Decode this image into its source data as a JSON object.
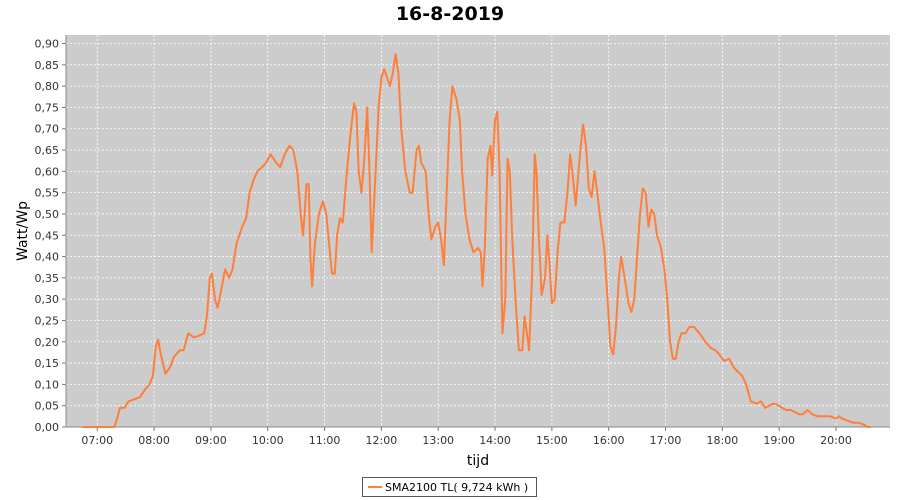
{
  "colors": {
    "plot_background": "#cccccc",
    "gridline": "#ffffff",
    "series_line": "#ff7f3a"
  },
  "chart_data": {
    "type": "line",
    "title": "16-8-2019",
    "xlabel": "tijd",
    "ylabel": "Watt/Wp",
    "x_unit": "hours (time of day)",
    "xlim": [
      6.45,
      20.95
    ],
    "ylim": [
      0,
      0.92
    ],
    "grid": true,
    "legend_position": "bottom-center",
    "x_ticks": [
      {
        "value": 7,
        "label": "07:00"
      },
      {
        "value": 8,
        "label": "08:00"
      },
      {
        "value": 9,
        "label": "09:00"
      },
      {
        "value": 10,
        "label": "10:00"
      },
      {
        "value": 11,
        "label": "11:00"
      },
      {
        "value": 12,
        "label": "12:00"
      },
      {
        "value": 13,
        "label": "13:00"
      },
      {
        "value": 14,
        "label": "14:00"
      },
      {
        "value": 15,
        "label": "15:00"
      },
      {
        "value": 16,
        "label": "16:00"
      },
      {
        "value": 17,
        "label": "17:00"
      },
      {
        "value": 18,
        "label": "18:00"
      },
      {
        "value": 19,
        "label": "19:00"
      },
      {
        "value": 20,
        "label": "20:00"
      }
    ],
    "y_ticks": [
      {
        "value": 0.0,
        "label": "0,00"
      },
      {
        "value": 0.05,
        "label": "0,05"
      },
      {
        "value": 0.1,
        "label": "0,10"
      },
      {
        "value": 0.15,
        "label": "0,15"
      },
      {
        "value": 0.2,
        "label": "0,20"
      },
      {
        "value": 0.25,
        "label": "0,25"
      },
      {
        "value": 0.3,
        "label": "0,30"
      },
      {
        "value": 0.35,
        "label": "0,35"
      },
      {
        "value": 0.4,
        "label": "0,40"
      },
      {
        "value": 0.45,
        "label": "0,45"
      },
      {
        "value": 0.5,
        "label": "0,50"
      },
      {
        "value": 0.55,
        "label": "0,55"
      },
      {
        "value": 0.6,
        "label": "0,60"
      },
      {
        "value": 0.65,
        "label": "0,65"
      },
      {
        "value": 0.7,
        "label": "0,70"
      },
      {
        "value": 0.75,
        "label": "0,75"
      },
      {
        "value": 0.8,
        "label": "0,80"
      },
      {
        "value": 0.85,
        "label": "0,85"
      },
      {
        "value": 0.9,
        "label": "0,90"
      }
    ],
    "series": [
      {
        "name": "SMA2100 TL( 9,724 kWh )",
        "color": "#ff7f3a",
        "points": [
          [
            6.75,
            0.0
          ],
          [
            7.3,
            0.0
          ],
          [
            7.35,
            0.02
          ],
          [
            7.4,
            0.045
          ],
          [
            7.48,
            0.045
          ],
          [
            7.55,
            0.06
          ],
          [
            7.65,
            0.065
          ],
          [
            7.75,
            0.07
          ],
          [
            7.85,
            0.09
          ],
          [
            7.92,
            0.1
          ],
          [
            7.98,
            0.12
          ],
          [
            8.03,
            0.19
          ],
          [
            8.07,
            0.205
          ],
          [
            8.12,
            0.17
          ],
          [
            8.2,
            0.125
          ],
          [
            8.28,
            0.14
          ],
          [
            8.35,
            0.165
          ],
          [
            8.45,
            0.18
          ],
          [
            8.52,
            0.18
          ],
          [
            8.6,
            0.22
          ],
          [
            8.7,
            0.21
          ],
          [
            8.8,
            0.215
          ],
          [
            8.88,
            0.22
          ],
          [
            8.93,
            0.26
          ],
          [
            8.98,
            0.35
          ],
          [
            9.02,
            0.36
          ],
          [
            9.07,
            0.3
          ],
          [
            9.12,
            0.28
          ],
          [
            9.18,
            0.32
          ],
          [
            9.25,
            0.37
          ],
          [
            9.32,
            0.35
          ],
          [
            9.38,
            0.37
          ],
          [
            9.45,
            0.43
          ],
          [
            9.55,
            0.47
          ],
          [
            9.62,
            0.49
          ],
          [
            9.68,
            0.55
          ],
          [
            9.75,
            0.58
          ],
          [
            9.82,
            0.6
          ],
          [
            9.9,
            0.61
          ],
          [
            9.97,
            0.62
          ],
          [
            10.05,
            0.64
          ],
          [
            10.15,
            0.62
          ],
          [
            10.22,
            0.61
          ],
          [
            10.3,
            0.64
          ],
          [
            10.38,
            0.66
          ],
          [
            10.45,
            0.65
          ],
          [
            10.52,
            0.6
          ],
          [
            10.58,
            0.5
          ],
          [
            10.62,
            0.45
          ],
          [
            10.65,
            0.5
          ],
          [
            10.68,
            0.57
          ],
          [
            10.72,
            0.57
          ],
          [
            10.75,
            0.4
          ],
          [
            10.78,
            0.33
          ],
          [
            10.83,
            0.43
          ],
          [
            10.9,
            0.5
          ],
          [
            10.97,
            0.53
          ],
          [
            11.03,
            0.5
          ],
          [
            11.08,
            0.43
          ],
          [
            11.13,
            0.36
          ],
          [
            11.18,
            0.36
          ],
          [
            11.22,
            0.45
          ],
          [
            11.27,
            0.49
          ],
          [
            11.32,
            0.48
          ],
          [
            11.38,
            0.58
          ],
          [
            11.45,
            0.68
          ],
          [
            11.52,
            0.76
          ],
          [
            11.56,
            0.74
          ],
          [
            11.6,
            0.6
          ],
          [
            11.65,
            0.55
          ],
          [
            11.7,
            0.63
          ],
          [
            11.75,
            0.75
          ],
          [
            11.79,
            0.6
          ],
          [
            11.83,
            0.41
          ],
          [
            11.88,
            0.55
          ],
          [
            11.95,
            0.75
          ],
          [
            12.0,
            0.82
          ],
          [
            12.05,
            0.84
          ],
          [
            12.1,
            0.82
          ],
          [
            12.15,
            0.8
          ],
          [
            12.2,
            0.83
          ],
          [
            12.25,
            0.875
          ],
          [
            12.3,
            0.83
          ],
          [
            12.35,
            0.7
          ],
          [
            12.42,
            0.6
          ],
          [
            12.5,
            0.55
          ],
          [
            12.55,
            0.55
          ],
          [
            12.62,
            0.65
          ],
          [
            12.66,
            0.66
          ],
          [
            12.7,
            0.62
          ],
          [
            12.78,
            0.6
          ],
          [
            12.83,
            0.5
          ],
          [
            12.88,
            0.44
          ],
          [
            12.95,
            0.47
          ],
          [
            13.0,
            0.48
          ],
          [
            13.05,
            0.44
          ],
          [
            13.1,
            0.38
          ],
          [
            13.15,
            0.55
          ],
          [
            13.2,
            0.72
          ],
          [
            13.25,
            0.8
          ],
          [
            13.32,
            0.77
          ],
          [
            13.38,
            0.72
          ],
          [
            13.42,
            0.6
          ],
          [
            13.48,
            0.5
          ],
          [
            13.55,
            0.44
          ],
          [
            13.62,
            0.41
          ],
          [
            13.7,
            0.42
          ],
          [
            13.75,
            0.41
          ],
          [
            13.78,
            0.33
          ],
          [
            13.82,
            0.42
          ],
          [
            13.87,
            0.63
          ],
          [
            13.92,
            0.66
          ],
          [
            13.95,
            0.59
          ],
          [
            14.0,
            0.72
          ],
          [
            14.04,
            0.74
          ],
          [
            14.08,
            0.6
          ],
          [
            14.13,
            0.22
          ],
          [
            14.18,
            0.3
          ],
          [
            14.22,
            0.63
          ],
          [
            14.26,
            0.6
          ],
          [
            14.3,
            0.45
          ],
          [
            14.36,
            0.3
          ],
          [
            14.42,
            0.18
          ],
          [
            14.48,
            0.18
          ],
          [
            14.52,
            0.26
          ],
          [
            14.56,
            0.22
          ],
          [
            14.6,
            0.18
          ],
          [
            14.65,
            0.35
          ],
          [
            14.7,
            0.64
          ],
          [
            14.73,
            0.6
          ],
          [
            14.77,
            0.45
          ],
          [
            14.82,
            0.31
          ],
          [
            14.88,
            0.35
          ],
          [
            14.92,
            0.45
          ],
          [
            14.96,
            0.38
          ],
          [
            15.0,
            0.29
          ],
          [
            15.05,
            0.3
          ],
          [
            15.1,
            0.41
          ],
          [
            15.15,
            0.48
          ],
          [
            15.22,
            0.48
          ],
          [
            15.28,
            0.56
          ],
          [
            15.32,
            0.64
          ],
          [
            15.36,
            0.6
          ],
          [
            15.42,
            0.52
          ],
          [
            15.5,
            0.65
          ],
          [
            15.55,
            0.71
          ],
          [
            15.6,
            0.66
          ],
          [
            15.65,
            0.56
          ],
          [
            15.7,
            0.54
          ],
          [
            15.75,
            0.6
          ],
          [
            15.8,
            0.55
          ],
          [
            15.85,
            0.49
          ],
          [
            15.92,
            0.42
          ],
          [
            15.98,
            0.3
          ],
          [
            16.03,
            0.19
          ],
          [
            16.08,
            0.17
          ],
          [
            16.13,
            0.24
          ],
          [
            16.18,
            0.35
          ],
          [
            16.22,
            0.4
          ],
          [
            16.28,
            0.35
          ],
          [
            16.35,
            0.29
          ],
          [
            16.4,
            0.27
          ],
          [
            16.45,
            0.3
          ],
          [
            16.5,
            0.4
          ],
          [
            16.55,
            0.5
          ],
          [
            16.6,
            0.56
          ],
          [
            16.65,
            0.55
          ],
          [
            16.7,
            0.47
          ],
          [
            16.75,
            0.51
          ],
          [
            16.8,
            0.5
          ],
          [
            16.85,
            0.45
          ],
          [
            16.92,
            0.42
          ],
          [
            16.98,
            0.37
          ],
          [
            17.03,
            0.3
          ],
          [
            17.08,
            0.2
          ],
          [
            17.13,
            0.16
          ],
          [
            17.18,
            0.16
          ],
          [
            17.23,
            0.2
          ],
          [
            17.28,
            0.22
          ],
          [
            17.35,
            0.22
          ],
          [
            17.42,
            0.235
          ],
          [
            17.5,
            0.235
          ],
          [
            17.6,
            0.22
          ],
          [
            17.7,
            0.2
          ],
          [
            17.8,
            0.185
          ],
          [
            17.88,
            0.18
          ],
          [
            17.95,
            0.17
          ],
          [
            18.03,
            0.155
          ],
          [
            18.12,
            0.16
          ],
          [
            18.2,
            0.14
          ],
          [
            18.27,
            0.13
          ],
          [
            18.35,
            0.12
          ],
          [
            18.42,
            0.1
          ],
          [
            18.5,
            0.06
          ],
          [
            18.6,
            0.055
          ],
          [
            18.68,
            0.06
          ],
          [
            18.75,
            0.045
          ],
          [
            18.82,
            0.05
          ],
          [
            18.9,
            0.055
          ],
          [
            18.97,
            0.052
          ],
          [
            19.05,
            0.045
          ],
          [
            19.12,
            0.04
          ],
          [
            19.2,
            0.04
          ],
          [
            19.28,
            0.035
          ],
          [
            19.35,
            0.03
          ],
          [
            19.42,
            0.03
          ],
          [
            19.5,
            0.04
          ],
          [
            19.58,
            0.03
          ],
          [
            19.68,
            0.025
          ],
          [
            19.8,
            0.025
          ],
          [
            19.9,
            0.025
          ],
          [
            20.0,
            0.02
          ],
          [
            20.05,
            0.025
          ],
          [
            20.1,
            0.02
          ],
          [
            20.2,
            0.015
          ],
          [
            20.3,
            0.01
          ],
          [
            20.4,
            0.01
          ],
          [
            20.5,
            0.005
          ],
          [
            20.55,
            0.0
          ],
          [
            20.6,
            0.0
          ]
        ]
      }
    ]
  }
}
